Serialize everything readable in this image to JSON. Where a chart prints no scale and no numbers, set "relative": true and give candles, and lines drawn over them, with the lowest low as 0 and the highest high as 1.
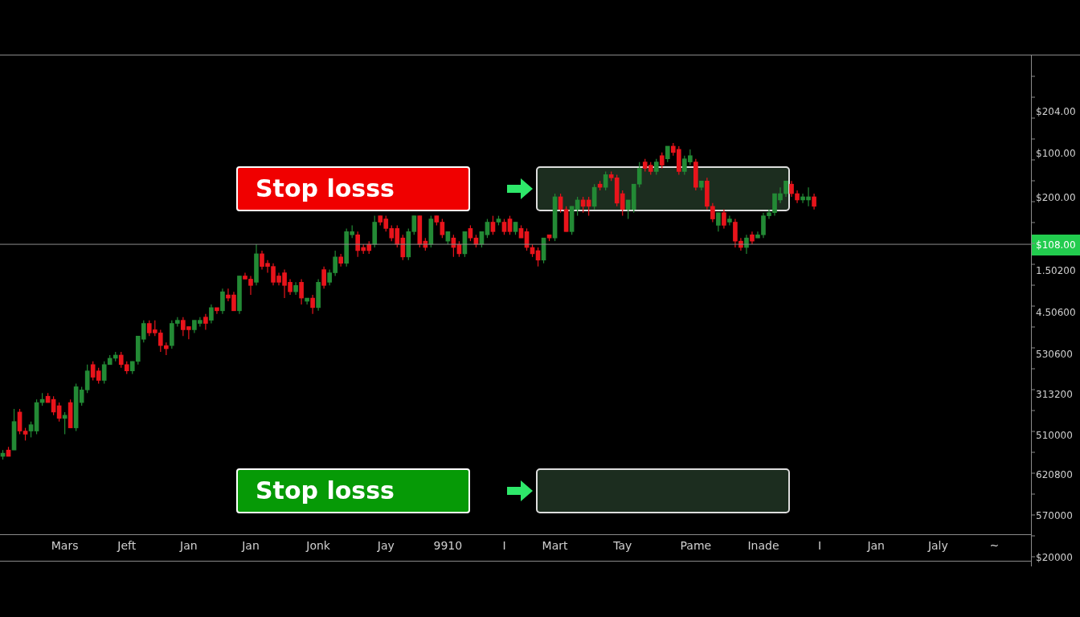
{
  "chart_data": {
    "type": "candlestick",
    "relative": true,
    "categories": [
      null,
      null,
      null,
      null,
      null,
      null,
      null,
      null,
      null,
      null,
      null,
      "Mars",
      null,
      null,
      null,
      null,
      null,
      null,
      null,
      null,
      null,
      null,
      "Jeft",
      null,
      null,
      null,
      null,
      null,
      null,
      null,
      null,
      null,
      null,
      "Jan",
      null,
      null,
      null,
      null,
      null,
      null,
      null,
      null,
      null,
      null,
      "Jan",
      null,
      null,
      null,
      null,
      null,
      null,
      null,
      null,
      null,
      null,
      null,
      "Jonk",
      null,
      null,
      null,
      null,
      null,
      null,
      null,
      null,
      null,
      null,
      null,
      "Jay",
      null,
      null,
      null,
      null,
      null,
      null,
      null,
      null,
      null,
      null,
      "9910",
      null,
      null,
      null,
      null,
      null,
      null,
      null,
      null,
      null,
      "I",
      null,
      null,
      null,
      null,
      null,
      null,
      null,
      null,
      "Mart",
      null,
      null,
      null,
      null,
      null,
      null,
      null,
      null,
      null,
      null,
      null,
      "Tay",
      null,
      null,
      null,
      null,
      null,
      null,
      null,
      null,
      null,
      null,
      null,
      null,
      "Pame",
      null,
      null,
      null,
      null,
      null,
      null,
      null,
      null,
      null,
      null,
      null,
      "Inade",
      null,
      null,
      null,
      null,
      null,
      null,
      null,
      null,
      null,
      "I",
      null,
      null,
      null,
      null,
      null,
      null,
      null,
      null,
      null,
      "Jan",
      null,
      null,
      null,
      null,
      null,
      null,
      null,
      null,
      null,
      null,
      "Jaly",
      null,
      null,
      null,
      null,
      null,
      null,
      null,
      null,
      null,
      "~",
      null,
      null,
      null,
      null,
      null,
      null
    ],
    "ohlc": [
      [
        0.01,
        0.03,
        0,
        0.02
      ],
      [
        0.03,
        0.04,
        0.01,
        0.01
      ],
      [
        0.03,
        0.16,
        0.03,
        0.12
      ],
      [
        0.15,
        0.16,
        0.08,
        0.09
      ],
      [
        0.09,
        0.1,
        0.06,
        0.08
      ],
      [
        0.09,
        0.12,
        0.07,
        0.11
      ],
      [
        0.09,
        0.19,
        0.08,
        0.18
      ],
      [
        0.18,
        0.21,
        0.17,
        0.19
      ],
      [
        0.2,
        0.21,
        0.18,
        0.18
      ],
      [
        0.19,
        0.2,
        0.14,
        0.15
      ],
      [
        0.17,
        0.18,
        0.12,
        0.13
      ],
      [
        0.13,
        0.15,
        0.08,
        0.14
      ],
      [
        0.18,
        0.19,
        0.1,
        0.1
      ],
      [
        0.1,
        0.24,
        0.09,
        0.23
      ],
      [
        0.18,
        0.23,
        0.17,
        0.22
      ],
      [
        0.22,
        0.3,
        0.21,
        0.28
      ],
      [
        0.3,
        0.31,
        0.25,
        0.26
      ],
      [
        0.28,
        0.29,
        0.24,
        0.25
      ],
      [
        0.25,
        0.31,
        0.24,
        0.3
      ],
      [
        0.3,
        0.33,
        0.3,
        0.32
      ],
      [
        0.32,
        0.34,
        0.31,
        0.33
      ],
      [
        0.33,
        0.34,
        0.29,
        0.3
      ],
      [
        0.3,
        0.31,
        0.27,
        0.28
      ],
      [
        0.28,
        0.31,
        0.27,
        0.31
      ],
      [
        0.31,
        0.39,
        0.3,
        0.39
      ],
      [
        0.38,
        0.44,
        0.37,
        0.43
      ],
      [
        0.43,
        0.44,
        0.39,
        0.4
      ],
      [
        0.41,
        0.44,
        0.39,
        0.4
      ],
      [
        0.4,
        0.41,
        0.34,
        0.36
      ],
      [
        0.36,
        0.37,
        0.33,
        0.35
      ],
      [
        0.36,
        0.44,
        0.35,
        0.43
      ],
      [
        0.43,
        0.45,
        0.42,
        0.44
      ],
      [
        0.44,
        0.45,
        0.39,
        0.41
      ],
      [
        0.42,
        0.42,
        0.38,
        0.41
      ],
      [
        0.41,
        0.44,
        0.4,
        0.44
      ],
      [
        0.43,
        0.45,
        0.42,
        0.44
      ],
      [
        0.45,
        0.46,
        0.41,
        0.43
      ],
      [
        0.44,
        0.49,
        0.43,
        0.48
      ],
      [
        0.48,
        0.48,
        0.46,
        0.47
      ],
      [
        0.47,
        0.54,
        0.46,
        0.53
      ],
      [
        0.52,
        0.54,
        0.5,
        0.51
      ],
      [
        0.52,
        0.53,
        0.47,
        0.47
      ],
      [
        0.47,
        0.58,
        0.46,
        0.58
      ],
      [
        0.58,
        0.59,
        0.57,
        0.57
      ],
      [
        0.57,
        0.58,
        0.52,
        0.55
      ],
      [
        0.56,
        0.68,
        0.55,
        0.65
      ],
      [
        0.65,
        0.66,
        0.6,
        0.61
      ],
      [
        0.62,
        0.63,
        0.59,
        0.61
      ],
      [
        0.61,
        0.62,
        0.55,
        0.56
      ],
      [
        0.58,
        0.59,
        0.55,
        0.56
      ],
      [
        0.59,
        0.6,
        0.51,
        0.55
      ],
      [
        0.56,
        0.57,
        0.52,
        0.53
      ],
      [
        0.53,
        0.56,
        0.52,
        0.55
      ],
      [
        0.56,
        0.57,
        0.49,
        0.51
      ],
      [
        0.5,
        0.51,
        0.49,
        0.51
      ],
      [
        0.51,
        0.52,
        0.46,
        0.48
      ],
      [
        0.48,
        0.57,
        0.47,
        0.56
      ],
      [
        0.6,
        0.61,
        0.54,
        0.55
      ],
      [
        0.56,
        0.6,
        0.55,
        0.59
      ],
      [
        0.59,
        0.66,
        0.58,
        0.64
      ],
      [
        0.64,
        0.65,
        0.61,
        0.62
      ],
      [
        0.62,
        0.73,
        0.61,
        0.72
      ],
      [
        0.71,
        0.74,
        0.7,
        0.72
      ],
      [
        0.71,
        0.72,
        0.64,
        0.66
      ],
      [
        0.67,
        0.68,
        0.65,
        0.66
      ],
      [
        0.68,
        0.69,
        0.65,
        0.66
      ],
      [
        0.68,
        0.77,
        0.67,
        0.75
      ],
      [
        0.77,
        0.77,
        0.74,
        0.75
      ],
      [
        0.76,
        0.77,
        0.72,
        0.73
      ],
      [
        0.73,
        0.74,
        0.69,
        0.7
      ],
      [
        0.73,
        0.74,
        0.67,
        0.68
      ],
      [
        0.7,
        0.71,
        0.63,
        0.64
      ],
      [
        0.64,
        0.73,
        0.63,
        0.72
      ],
      [
        0.72,
        0.77,
        0.71,
        0.77
      ],
      [
        0.77,
        0.77,
        0.67,
        0.68
      ],
      [
        0.69,
        0.7,
        0.66,
        0.67
      ],
      [
        0.68,
        0.77,
        0.67,
        0.76
      ],
      [
        0.77,
        0.77,
        0.74,
        0.75
      ],
      [
        0.75,
        0.76,
        0.7,
        0.71
      ],
      [
        0.69,
        0.72,
        0.68,
        0.72
      ],
      [
        0.7,
        0.71,
        0.64,
        0.67
      ],
      [
        0.68,
        0.69,
        0.64,
        0.65
      ],
      [
        0.65,
        0.72,
        0.64,
        0.72
      ],
      [
        0.73,
        0.74,
        0.69,
        0.7
      ],
      [
        0.7,
        0.71,
        0.67,
        0.68
      ],
      [
        0.68,
        0.72,
        0.67,
        0.72
      ],
      [
        0.71,
        0.76,
        0.7,
        0.75
      ],
      [
        0.75,
        0.77,
        0.71,
        0.72
      ],
      [
        0.75,
        0.77,
        0.74,
        0.76
      ],
      [
        0.75,
        0.76,
        0.71,
        0.72
      ],
      [
        0.76,
        0.77,
        0.71,
        0.72
      ],
      [
        0.72,
        0.75,
        0.71,
        0.75
      ],
      [
        0.73,
        0.74,
        0.7,
        0.7
      ],
      [
        0.72,
        0.73,
        0.66,
        0.67
      ],
      [
        0.67,
        0.68,
        0.64,
        0.65
      ],
      [
        0.66,
        0.67,
        0.61,
        0.63
      ],
      [
        0.63,
        0.7,
        0.62,
        0.7
      ],
      [
        0.71,
        0.71,
        0.69,
        0.7
      ],
      [
        0.7,
        0.84,
        0.69,
        0.83
      ],
      [
        0.83,
        0.84,
        0.78,
        0.79
      ],
      [
        0.79,
        0.8,
        0.72,
        0.72
      ],
      [
        0.72,
        0.8,
        0.71,
        0.8
      ],
      [
        0.79,
        0.83,
        0.77,
        0.82
      ],
      [
        0.82,
        0.83,
        0.78,
        0.8
      ],
      [
        0.82,
        0.83,
        0.77,
        0.8
      ],
      [
        0.8,
        0.87,
        0.79,
        0.86
      ],
      [
        0.87,
        0.88,
        0.85,
        0.86
      ],
      [
        0.86,
        0.91,
        0.85,
        0.9
      ],
      [
        0.9,
        0.91,
        0.88,
        0.89
      ],
      [
        0.89,
        0.9,
        0.8,
        0.81
      ],
      [
        0.84,
        0.85,
        0.77,
        0.79
      ],
      [
        0.79,
        0.82,
        0.76,
        0.82
      ],
      [
        0.79,
        0.87,
        0.78,
        0.87
      ],
      [
        0.87,
        0.94,
        0.86,
        0.92
      ],
      [
        0.94,
        0.95,
        0.91,
        0.92
      ],
      [
        0.93,
        0.94,
        0.9,
        0.91
      ],
      [
        0.91,
        0.95,
        0.9,
        0.94
      ],
      [
        0.96,
        0.97,
        0.92,
        0.93
      ],
      [
        0.95,
        0.99,
        0.94,
        0.99
      ],
      [
        0.99,
        1,
        0.96,
        0.97
      ],
      [
        0.98,
        0.99,
        0.9,
        0.91
      ],
      [
        0.91,
        0.96,
        0.9,
        0.95
      ],
      [
        0.94,
        0.98,
        0.93,
        0.96
      ],
      [
        0.94,
        0.95,
        0.85,
        0.86
      ],
      [
        0.86,
        0.88,
        0.85,
        0.88
      ],
      [
        0.88,
        0.89,
        0.79,
        0.8
      ],
      [
        0.8,
        0.81,
        0.75,
        0.76
      ],
      [
        0.74,
        0.78,
        0.72,
        0.78
      ],
      [
        0.78,
        0.79,
        0.73,
        0.74
      ],
      [
        0.75,
        0.77,
        0.74,
        0.76
      ],
      [
        0.75,
        0.76,
        0.67,
        0.69
      ],
      [
        0.69,
        0.7,
        0.66,
        0.67
      ],
      [
        0.67,
        0.71,
        0.65,
        0.7
      ],
      [
        0.71,
        0.72,
        0.68,
        0.69
      ],
      [
        0.7,
        0.72,
        0.7,
        0.71
      ],
      [
        0.71,
        0.78,
        0.7,
        0.77
      ],
      [
        0.77,
        0.79,
        0.76,
        0.78
      ],
      [
        0.78,
        0.84,
        0.77,
        0.84
      ],
      [
        0.82,
        0.86,
        0.81,
        0.84
      ],
      [
        0.84,
        0.88,
        0.83,
        0.88
      ],
      [
        0.87,
        0.88,
        0.83,
        0.84
      ],
      [
        0.84,
        0.85,
        0.81,
        0.82
      ],
      [
        0.82,
        0.84,
        0.81,
        0.83
      ],
      [
        0.82,
        0.86,
        0.8,
        0.83
      ],
      [
        0.83,
        0.84,
        0.79,
        0.8
      ],
      null,
      null,
      null,
      null,
      null,
      null,
      null,
      null,
      null,
      null,
      null,
      null,
      null,
      null,
      null,
      null,
      null,
      null,
      null,
      null,
      null,
      null,
      null,
      null,
      null,
      null,
      null,
      null,
      null,
      null,
      null,
      null,
      null,
      null,
      null,
      null,
      null,
      null
    ],
    "colors": [
      "#238a35",
      "#e8141b",
      "#238a35",
      "#e8141b",
      "#e8141b",
      "#238a35",
      "#238a35",
      "#238a35",
      "#e8141b",
      "#e8141b",
      "#e8141b",
      "#238a35",
      "#e8141b",
      "#238a35",
      "#238a35",
      "#238a35",
      "#e8141b",
      "#e8141b",
      "#238a35",
      "#238a35",
      "#238a35",
      "#e8141b",
      "#e8141b",
      "#238a35",
      "#238a35",
      "#238a35",
      "#e8141b",
      "#e8141b",
      "#e8141b",
      "#e8141b",
      "#238a35",
      "#238a35",
      "#e8141b",
      "#e8141b",
      "#238a35",
      "#238a35",
      "#e8141b",
      "#238a35",
      "#e8141b",
      "#238a35",
      "#e8141b",
      "#e8141b",
      "#238a35",
      "#e8141b",
      "#e8141b",
      "#238a35",
      "#e8141b",
      "#e8141b",
      "#e8141b",
      "#e8141b",
      "#e8141b",
      "#e8141b",
      "#238a35",
      "#e8141b",
      "#238a35",
      "#e8141b",
      "#238a35",
      "#e8141b",
      "#238a35",
      "#238a35",
      "#e8141b",
      "#238a35",
      "#238a35",
      "#e8141b",
      "#e8141b",
      "#e8141b",
      "#238a35",
      "#e8141b",
      "#e8141b",
      "#e8141b",
      "#e8141b",
      "#e8141b",
      "#238a35",
      "#238a35",
      "#e8141b",
      "#e8141b",
      "#238a35",
      "#e8141b",
      "#e8141b",
      "#238a35",
      "#e8141b",
      "#e8141b",
      "#238a35",
      "#e8141b",
      "#e8141b",
      "#238a35",
      "#238a35",
      "#e8141b",
      "#238a35",
      "#e8141b",
      "#e8141b",
      "#238a35",
      "#e8141b",
      "#e8141b",
      "#e8141b",
      "#e8141b",
      "#238a35",
      "#e8141b",
      "#238a35",
      "#e8141b",
      "#e8141b",
      "#238a35",
      "#238a35",
      "#e8141b",
      "#e8141b",
      "#238a35",
      "#e8141b",
      "#238a35",
      "#e8141b",
      "#e8141b",
      "#e8141b",
      "#238a35",
      "#238a35",
      "#238a35",
      "#e8141b",
      "#e8141b",
      "#238a35",
      "#e8141b",
      "#238a35",
      "#e8141b",
      "#e8141b",
      "#238a35",
      "#238a35",
      "#e8141b",
      "#238a35",
      "#e8141b",
      "#e8141b",
      "#238a35",
      "#e8141b",
      "#238a35",
      "#e8141b",
      "#e8141b",
      "#238a35",
      "#e8141b",
      "#238a35",
      "#238a35",
      "#238a35",
      "#238a35",
      "#238a35",
      "#238a35",
      "#e8141b",
      "#e8141b",
      "#238a35",
      "#238a35",
      "#e8141b",
      null,
      null,
      null,
      null,
      null,
      null,
      null,
      null,
      null,
      null,
      null,
      null,
      null,
      null,
      null,
      null,
      null,
      null,
      null,
      null,
      null,
      null,
      null,
      null,
      null,
      null,
      null,
      null,
      null,
      null,
      null,
      null,
      null,
      null,
      null,
      null,
      null,
      null
    ],
    "ref_lines": [
      {
        "axis": "y",
        "value": 0.68,
        "color": "#8c8c8c"
      }
    ],
    "annotations": [
      "Stop losss",
      "Stop losss",
      "$204.00",
      "$100.00",
      "$200.00",
      "$108.00",
      "1.50200",
      "4.50600",
      "530600",
      "313200",
      "510000",
      "620800",
      "570000",
      "$20000"
    ],
    "legend": false
  }
}
